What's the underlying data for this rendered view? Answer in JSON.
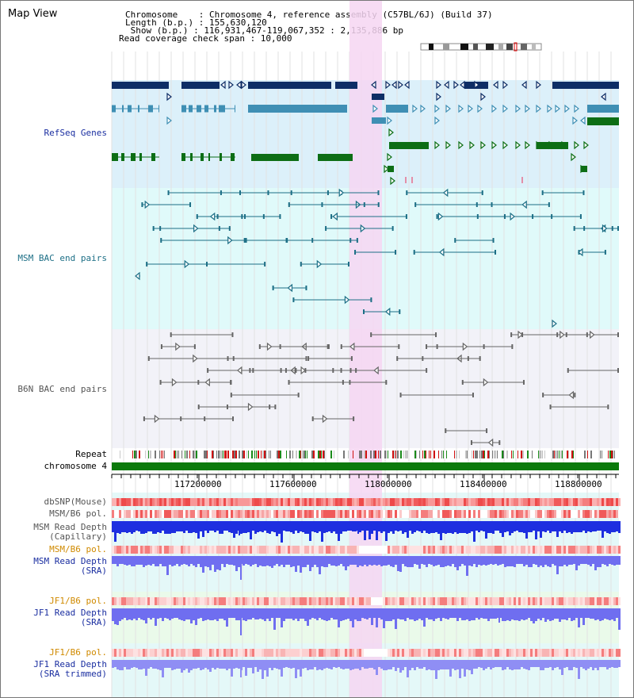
{
  "map_view": {
    "title": "Map View"
  },
  "info": {
    "chromosome_line": "Chromosome    : Chromosome 4, reference assembly (C57BL/6J) (Build 37)",
    "length_line": "Length (b.p.) : 155,630,120",
    "show_line": " Show (b.p.) : 116,931,467-119,067,352 : 2,135,886 bp",
    "coverage_line": "Read coverage check span : 10,000"
  },
  "tracks": {
    "refseq": "RefSeq Genes",
    "msm_bac": "MSM BAC end pairs",
    "b6n_bac": "B6N BAC end pairs",
    "repeat": "Repeat",
    "chromosome": "chromosome 4",
    "dbsnp": "dbSNP(Mouse)",
    "msm_b6_pol": "MSM/B6 pol.",
    "msm_depth_cap": "MSM Read Depth\n(Capillary)",
    "msm_b6_pol2": "MSM/B6 pol.",
    "msm_depth_sra": "MSM Read Depth\n(SRA)",
    "jf1_b6_pol": "JF1/B6 pol.",
    "jf1_depth_sra": "JF1 Read Depth\n(SRA)",
    "jf1_b6_pol2": "JF1/B6 pol.",
    "jf1_depth_trim": "JF1 Read Depth\n(SRA trimmed)"
  },
  "axis": {
    "ticks": [
      "117200000",
      "117600000",
      "118000000",
      "118400000",
      "118800000"
    ]
  },
  "colors": {
    "refseq_bg": "#dcf0fa",
    "msm_bg": "#e0fafa",
    "b6n_bg": "#f2f2f8",
    "highlight": "#f6d6f2",
    "navy": "#0e2e66",
    "steel": "#3f8fb4",
    "green": "#0d6e15",
    "teal": "#1d6f86",
    "gray": "#666666",
    "blue_label": "#1a2ea0",
    "orange_label": "#d08a00"
  }
}
